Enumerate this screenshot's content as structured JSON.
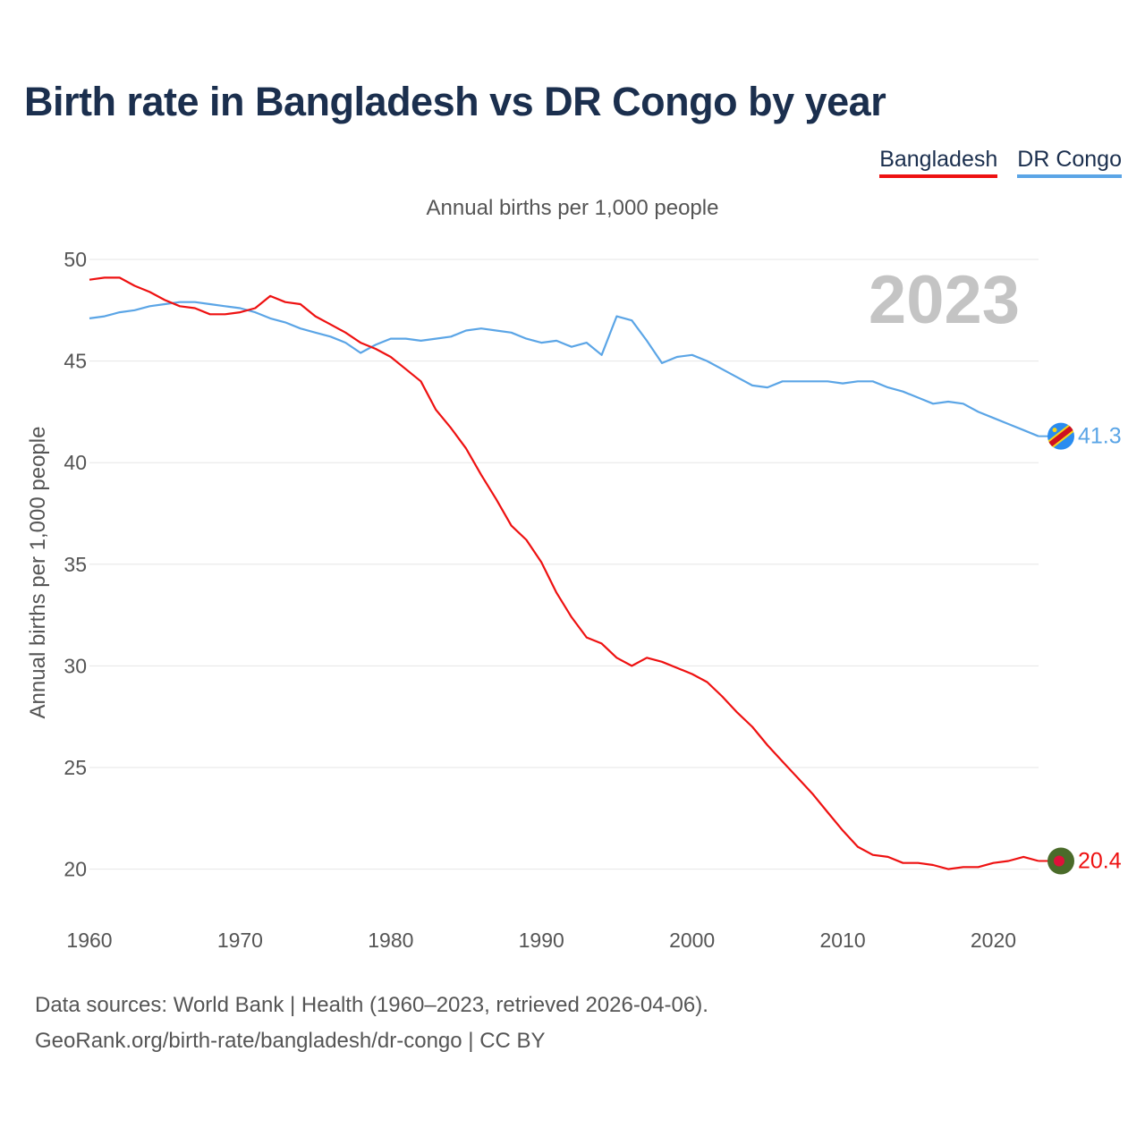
{
  "title": "Birth rate in Bangladesh vs DR Congo by year",
  "legend": {
    "bangladesh": "Bangladesh",
    "drcongo": "DR Congo"
  },
  "footer": {
    "line1": "Data sources: World Bank | Health (1960–2023, retrieved 2026-04-06).",
    "line2": "GeoRank.org/birth-rate/bangladesh/dr-congo | CC BY"
  },
  "colors": {
    "bangladesh": "#ee1111",
    "drcongo": "#5ba5e6",
    "grid": "#e6e6e6",
    "year_label": "#c4c4c4"
  },
  "chart_data": {
    "type": "line",
    "title": "Annual births per 1,000 people",
    "subtitle": "Annual births per 1,000 people",
    "xlabel": "",
    "ylabel": "Annual births per 1,000 people",
    "year_label": "2023",
    "xlim": [
      1960,
      2023
    ],
    "ylim": [
      18,
      50
    ],
    "xticks": [
      1960,
      1970,
      1980,
      1990,
      2000,
      2010,
      2020
    ],
    "yticks": [
      20,
      25,
      30,
      35,
      40,
      45,
      50
    ],
    "grid": true,
    "legend_position": "top-right",
    "x": [
      1960,
      1961,
      1962,
      1963,
      1964,
      1965,
      1966,
      1967,
      1968,
      1969,
      1970,
      1971,
      1972,
      1973,
      1974,
      1975,
      1976,
      1977,
      1978,
      1979,
      1980,
      1981,
      1982,
      1983,
      1984,
      1985,
      1986,
      1987,
      1988,
      1989,
      1990,
      1991,
      1992,
      1993,
      1994,
      1995,
      1996,
      1997,
      1998,
      1999,
      2000,
      2001,
      2002,
      2003,
      2004,
      2005,
      2006,
      2007,
      2008,
      2009,
      2010,
      2011,
      2012,
      2013,
      2014,
      2015,
      2016,
      2017,
      2018,
      2019,
      2020,
      2021,
      2022,
      2023
    ],
    "series": [
      {
        "name": "Bangladesh",
        "end_label": "20.4",
        "values": [
          49.0,
          49.1,
          49.1,
          48.7,
          48.4,
          48.0,
          47.7,
          47.6,
          47.3,
          47.3,
          47.4,
          47.6,
          48.2,
          47.9,
          47.8,
          47.2,
          46.8,
          46.4,
          45.9,
          45.6,
          45.2,
          44.6,
          44.0,
          42.6,
          41.7,
          40.7,
          39.4,
          38.2,
          36.9,
          36.2,
          35.1,
          33.6,
          32.4,
          31.4,
          31.1,
          30.4,
          30.0,
          30.4,
          30.2,
          29.9,
          29.6,
          29.2,
          28.5,
          27.7,
          27.0,
          26.1,
          25.3,
          24.5,
          23.7,
          22.8,
          21.9,
          21.1,
          20.7,
          20.6,
          20.3,
          20.3,
          20.2,
          20.0,
          20.1,
          20.1,
          20.3,
          20.4,
          20.6,
          20.4
        ]
      },
      {
        "name": "DR Congo",
        "end_label": "41.3",
        "values": [
          47.1,
          47.2,
          47.4,
          47.5,
          47.7,
          47.8,
          47.9,
          47.9,
          47.8,
          47.7,
          47.6,
          47.4,
          47.1,
          46.9,
          46.6,
          46.4,
          46.2,
          45.9,
          45.4,
          45.8,
          46.1,
          46.1,
          46.0,
          46.1,
          46.2,
          46.5,
          46.6,
          46.5,
          46.4,
          46.1,
          45.9,
          46.0,
          45.7,
          45.9,
          45.3,
          47.2,
          47.0,
          46.0,
          44.9,
          45.2,
          45.3,
          45.0,
          44.6,
          44.2,
          43.8,
          43.7,
          44.0,
          44.0,
          44.0,
          44.0,
          43.9,
          44.0,
          44.0,
          43.7,
          43.5,
          43.2,
          42.9,
          43.0,
          42.9,
          42.5,
          42.2,
          41.9,
          41.6,
          41.3
        ]
      }
    ]
  }
}
